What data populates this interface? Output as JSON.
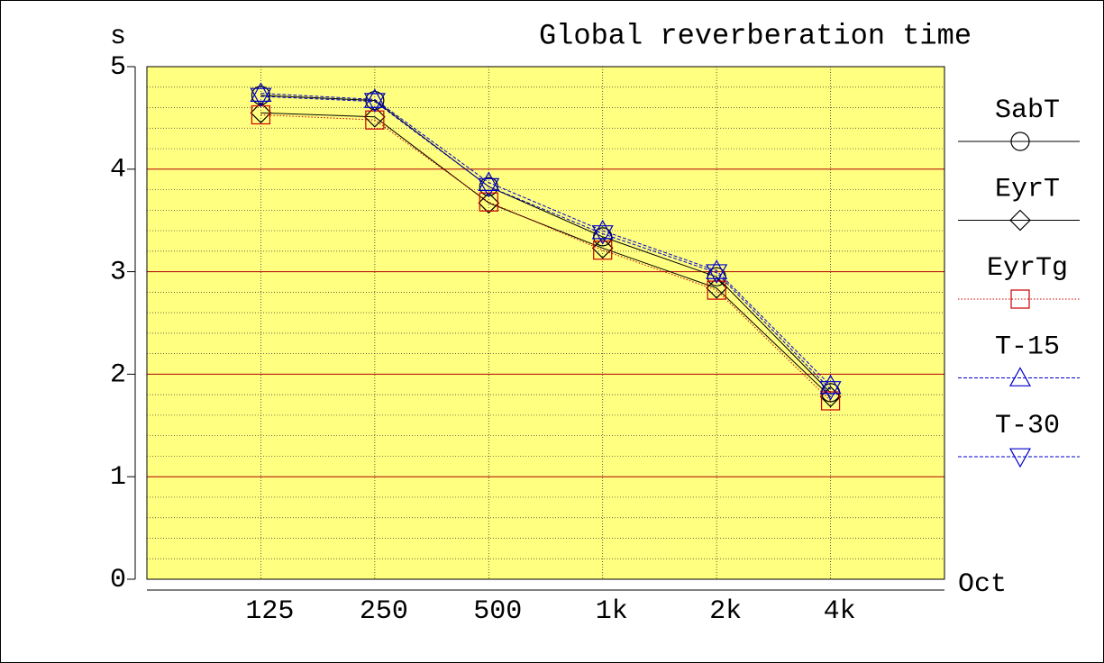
{
  "chart_data": {
    "type": "line",
    "title": "Global reverberation time",
    "y_label": "s",
    "x_label": "Oct",
    "categories": [
      "125",
      "250",
      "500",
      "1k",
      "2k",
      "4k"
    ],
    "ylim": [
      0,
      5
    ],
    "yticks": [
      0,
      1,
      2,
      3,
      4,
      5
    ],
    "grid": true,
    "legend": "right",
    "background": "#ffff80",
    "series": [
      {
        "name": "SabT",
        "color": "#000000",
        "line_style": "solid",
        "marker": "circle",
        "values": [
          4.72,
          4.67,
          3.83,
          3.34,
          2.95,
          1.82
        ]
      },
      {
        "name": "EyrT",
        "color": "#000000",
        "line_style": "solid",
        "marker": "diamond",
        "values": [
          4.55,
          4.51,
          3.67,
          3.23,
          2.84,
          1.78
        ]
      },
      {
        "name": "EyrTg",
        "color": "#cc0000",
        "line_style": "dotted",
        "marker": "square",
        "values": [
          4.53,
          4.48,
          3.68,
          3.21,
          2.82,
          1.74
        ]
      },
      {
        "name": "T-15",
        "color": "#0000cc",
        "line_style": "dashed",
        "marker": "triangle-up",
        "values": [
          4.74,
          4.68,
          3.87,
          3.4,
          3.01,
          1.89
        ]
      },
      {
        "name": "T-30",
        "color": "#0000cc",
        "line_style": "dashed",
        "marker": "triangle-down",
        "values": [
          4.71,
          4.66,
          3.83,
          3.37,
          2.99,
          1.85
        ]
      }
    ]
  }
}
